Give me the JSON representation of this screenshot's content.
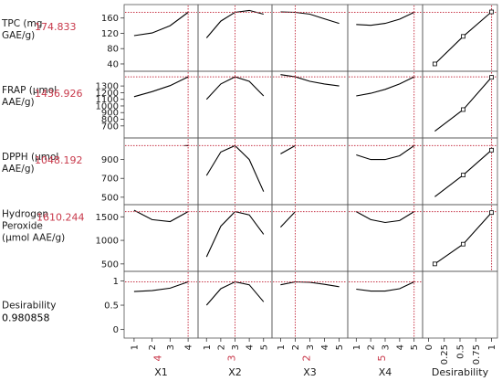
{
  "chart_data": {
    "type": "line",
    "title": "",
    "factors": [
      {
        "key": "X1",
        "label": "X1",
        "current": 4,
        "current_label": "4",
        "ticks": [
          1,
          2,
          3,
          4
        ],
        "range": [
          0.6,
          4.4
        ]
      },
      {
        "key": "X2",
        "label": "X2",
        "current": 3,
        "current_label": "3",
        "ticks": [
          1,
          2,
          3,
          4,
          5
        ],
        "range": [
          0.6,
          5.4
        ]
      },
      {
        "key": "X3",
        "label": "X3",
        "current": 2,
        "current_label": "2",
        "ticks": [
          1,
          2,
          3,
          4,
          5
        ],
        "range": [
          0.6,
          5.4
        ]
      },
      {
        "key": "X4",
        "label": "X4",
        "current": 5,
        "current_label": "5",
        "ticks": [
          1,
          2,
          3,
          4,
          5
        ],
        "range": [
          0.6,
          5.4
        ]
      },
      {
        "key": "Desirability",
        "label": "Desirability",
        "current": 1,
        "current_label": "",
        "ticks": [
          0,
          0.25,
          0.5,
          0.75,
          1
        ],
        "tick_labels": [
          "0",
          "0.25",
          "0.5",
          "0.75",
          "1"
        ],
        "range": [
          -0.05,
          1.05
        ]
      }
    ],
    "responses": [
      {
        "label_lines": [
          "TPC (mg",
          "GAE/g)"
        ],
        "current_value": "174.833",
        "ylim": [
          28,
          188
        ],
        "yticks": [
          40,
          80,
          120,
          160
        ],
        "profiles": [
          [
            [
              1,
              114
            ],
            [
              2,
              121
            ],
            [
              3,
              140
            ],
            [
              4,
              174.8
            ]
          ],
          [
            [
              1,
              108
            ],
            [
              2,
              152
            ],
            [
              3,
              174.8
            ],
            [
              4,
              180
            ],
            [
              5,
              170
            ]
          ],
          [
            [
              1,
              176
            ],
            [
              2,
              174.8
            ],
            [
              3,
              170
            ],
            [
              4,
              158
            ],
            [
              5,
              146
            ]
          ],
          [
            [
              1,
              143
            ],
            [
              2,
              141
            ],
            [
              3,
              146
            ],
            [
              4,
              157
            ],
            [
              5,
              174.8
            ]
          ],
          [
            [
              0.1,
              40
            ],
            [
              0.55,
              112
            ],
            [
              1,
              176
            ]
          ]
        ],
        "markers": [
          [
            0.1,
            40
          ],
          [
            0.55,
            112
          ],
          [
            1,
            176
          ]
        ]
      },
      {
        "label_lines": [
          "FRAP (µmol",
          "AAE/g)"
        ],
        "current_value": "1436.926",
        "ylim": [
          560,
          1480
        ],
        "yticks": [
          700,
          800,
          900,
          1000,
          1100,
          1200,
          1300
        ],
        "profiles": [
          [
            [
              1,
              1140
            ],
            [
              2,
              1215
            ],
            [
              3,
              1305
            ],
            [
              4,
              1437
            ]
          ],
          [
            [
              1,
              1100
            ],
            [
              2,
              1330
            ],
            [
              3,
              1437
            ],
            [
              4,
              1370
            ],
            [
              5,
              1150
            ]
          ],
          [
            [
              1,
              1470
            ],
            [
              2,
              1437
            ],
            [
              3,
              1370
            ],
            [
              4,
              1330
            ],
            [
              5,
              1300
            ]
          ],
          [
            [
              1,
              1150
            ],
            [
              2,
              1190
            ],
            [
              3,
              1250
            ],
            [
              4,
              1330
            ],
            [
              5,
              1437
            ]
          ],
          [
            [
              0.1,
              620
            ],
            [
              0.55,
              945
            ],
            [
              1,
              1430
            ]
          ]
        ],
        "markers": [
          [
            0.55,
            945
          ],
          [
            1,
            1430
          ]
        ]
      },
      {
        "label_lines": [
          "DPPH (µmol",
          "AAE/g)"
        ],
        "current_value": "1048.192",
        "ylim": [
          450,
          1100
        ],
        "yticks": [
          500,
          700,
          900
        ],
        "profiles": [
          [
            [
              3.8,
              1048
            ],
            [
              4,
              1048
            ]
          ],
          [
            [
              1,
              730
            ],
            [
              2,
              980
            ],
            [
              3,
              1048
            ],
            [
              4,
              900
            ],
            [
              5,
              560
            ]
          ],
          [
            [
              1,
              960
            ],
            [
              2,
              1048
            ]
          ],
          [
            [
              1,
              950
            ],
            [
              2,
              900
            ],
            [
              3,
              900
            ],
            [
              4,
              940
            ],
            [
              5,
              1048
            ]
          ],
          [
            [
              0.1,
              505
            ],
            [
              0.55,
              735
            ],
            [
              1,
              1000
            ]
          ]
        ],
        "markers": [
          [
            0.55,
            735
          ],
          [
            1,
            1000
          ]
        ]
      },
      {
        "label_lines": [
          "Hydrogen",
          "Peroxide",
          "(µmol AAE/g)"
        ],
        "current_value": "1610.244",
        "ylim": [
          400,
          1700
        ],
        "yticks": [
          500,
          1000,
          1500
        ],
        "profiles": [
          [
            [
              1,
              1640
            ],
            [
              2,
              1440
            ],
            [
              3,
              1400
            ],
            [
              4,
              1610
            ]
          ],
          [
            [
              1,
              650
            ],
            [
              2,
              1300
            ],
            [
              3,
              1610
            ],
            [
              4,
              1540
            ],
            [
              5,
              1130
            ]
          ],
          [
            [
              1,
              1280
            ],
            [
              2,
              1610
            ]
          ],
          [
            [
              1,
              1610
            ],
            [
              2,
              1440
            ],
            [
              3,
              1380
            ],
            [
              4,
              1420
            ],
            [
              5,
              1610
            ]
          ],
          [
            [
              0.1,
              500
            ],
            [
              0.55,
              920
            ],
            [
              1,
              1590
            ]
          ],
          [
            [
              4.7,
              1590
            ],
            [
              5,
              1500
            ]
          ]
        ],
        "markers": [
          [
            0.1,
            500
          ],
          [
            0.55,
            920
          ],
          [
            1,
            1590
          ]
        ]
      },
      {
        "label_lines": [
          "Desirability"
        ],
        "current_value": "0.980858",
        "current_value_color": "black",
        "ylim": [
          -0.12,
          1.14
        ],
        "yticks": [
          0,
          0.5,
          1
        ],
        "tick_labels": [
          "0",
          "0.5",
          "1"
        ],
        "profiles": [
          [
            [
              1,
              0.78
            ],
            [
              2,
              0.8
            ],
            [
              3,
              0.85
            ],
            [
              4,
              0.98
            ]
          ],
          [
            [
              1,
              0.5
            ],
            [
              2,
              0.84
            ],
            [
              3,
              0.98
            ],
            [
              4,
              0.92
            ],
            [
              5,
              0.57
            ]
          ],
          [
            [
              1,
              0.92
            ],
            [
              2,
              0.98
            ],
            [
              3,
              0.97
            ],
            [
              4,
              0.93
            ],
            [
              5,
              0.88
            ]
          ],
          [
            [
              1,
              0.83
            ],
            [
              2,
              0.79
            ],
            [
              3,
              0.79
            ],
            [
              4,
              0.84
            ],
            [
              5,
              0.98
            ]
          ],
          null
        ],
        "markers": []
      }
    ],
    "grid": false,
    "colors": {
      "line": "#000000",
      "crosshair": "#c8384a",
      "frame": "#555555",
      "red_text": "#c8384a"
    }
  }
}
